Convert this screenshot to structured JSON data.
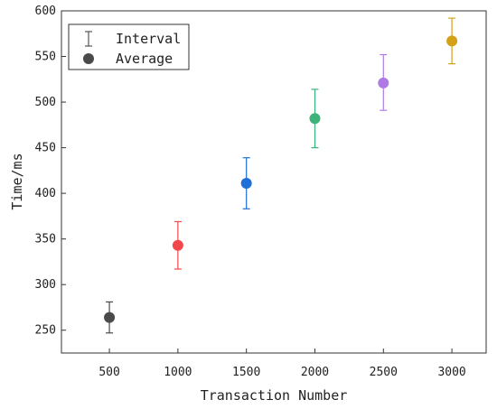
{
  "chart_data": {
    "type": "scatter",
    "title": "",
    "xlabel": "Transaction Number",
    "ylabel": "Time/ms",
    "x_ticks": [
      500,
      1000,
      1500,
      2000,
      2500,
      3000
    ],
    "y_ticks": [
      250,
      300,
      350,
      400,
      450,
      500,
      550,
      600
    ],
    "xlim": [
      150,
      3250
    ],
    "ylim": [
      225,
      600
    ],
    "grid": false,
    "legend": {
      "placement": "top-left",
      "entries": [
        {
          "label": "Interval",
          "marker": "errorbar",
          "color": "#555555"
        },
        {
          "label": "Average",
          "marker": "circle",
          "color": "#4a4a4a"
        }
      ]
    },
    "points": [
      {
        "x": 500,
        "y": 264,
        "low": 247,
        "high": 281,
        "color": "#4a4a4a"
      },
      {
        "x": 1000,
        "y": 343,
        "low": 317,
        "high": 369,
        "color": "#f2484b"
      },
      {
        "x": 1500,
        "y": 411,
        "low": 383,
        "high": 439,
        "color": "#1f6fd8"
      },
      {
        "x": 2000,
        "y": 482,
        "low": 450,
        "high": 514,
        "color": "#3db37a"
      },
      {
        "x": 2500,
        "y": 521,
        "low": 491,
        "high": 552,
        "color": "#b07ae6"
      },
      {
        "x": 3000,
        "y": 567,
        "low": 542,
        "high": 592,
        "color": "#d4a017"
      }
    ]
  }
}
